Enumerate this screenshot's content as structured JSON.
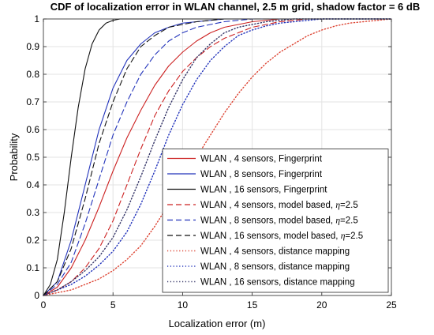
{
  "chart_data": {
    "type": "line",
    "title": "CDF of localization error in WLAN channel, 2.5 m grid, shadow factor =  6 dB",
    "xlabel": "Localization error (m)",
    "ylabel": "Probability",
    "xlim": [
      0,
      25
    ],
    "ylim": [
      0,
      1
    ],
    "xticks": [
      "0",
      "5",
      "10",
      "15",
      "20",
      "25"
    ],
    "yticks": [
      "0",
      "0.1",
      "0.2",
      "0.3",
      "0.4",
      "0.5",
      "0.6",
      "0.7",
      "0.8",
      "0.9",
      "1"
    ],
    "grid": true,
    "legend_position": "bottom-right",
    "series": [
      {
        "name": "WLAN , 4 sensors,    Fingerprint",
        "color": "#cc2222",
        "style": "solid",
        "x": [
          0,
          1,
          2,
          3,
          4,
          5,
          6,
          7,
          8,
          9,
          10,
          11,
          12,
          13,
          14,
          15,
          16,
          17,
          18,
          19,
          20,
          25
        ],
        "y": [
          0,
          0.03,
          0.1,
          0.2,
          0.32,
          0.45,
          0.57,
          0.67,
          0.76,
          0.83,
          0.88,
          0.92,
          0.95,
          0.97,
          0.98,
          0.99,
          0.995,
          1,
          1,
          1,
          1,
          1
        ]
      },
      {
        "name": "WLAN , 8 sensors,    Fingerprint",
        "color": "#2233bb",
        "style": "solid",
        "x": [
          0,
          1,
          2,
          3,
          4,
          5,
          6,
          7,
          8,
          9,
          10,
          11,
          12,
          13,
          14,
          15,
          16,
          17,
          18,
          25
        ],
        "y": [
          0,
          0.05,
          0.2,
          0.4,
          0.6,
          0.75,
          0.85,
          0.91,
          0.95,
          0.97,
          0.985,
          0.99,
          0.995,
          1,
          1,
          1,
          1,
          1,
          1,
          1
        ]
      },
      {
        "name": "WLAN , 16 sensors,    Fingerprint",
        "color": "#111111",
        "style": "solid",
        "x": [
          0,
          0.5,
          1,
          1.5,
          2,
          2.5,
          3,
          3.5,
          4,
          4.5,
          5,
          5.5,
          6,
          7,
          8,
          9,
          10,
          25
        ],
        "y": [
          0,
          0.04,
          0.13,
          0.3,
          0.5,
          0.68,
          0.82,
          0.91,
          0.96,
          0.985,
          0.995,
          1,
          1,
          1,
          1,
          1,
          1,
          1
        ]
      },
      {
        "name": "WLAN , 4 sensors,    model based, η=2.5",
        "color": "#cc2222",
        "style": "dashed",
        "x": [
          0,
          1,
          2,
          3,
          4,
          5,
          6,
          7,
          8,
          9,
          10,
          11,
          12,
          13,
          14,
          15,
          16,
          17,
          18,
          19,
          20,
          25
        ],
        "y": [
          0,
          0.02,
          0.05,
          0.1,
          0.17,
          0.27,
          0.4,
          0.53,
          0.65,
          0.74,
          0.81,
          0.86,
          0.9,
          0.93,
          0.95,
          0.97,
          0.98,
          0.99,
          0.995,
          1,
          1,
          1
        ]
      },
      {
        "name": "WLAN , 8 sensors,    model based, η=2.5",
        "color": "#2233bb",
        "style": "dashed",
        "x": [
          0,
          1,
          2,
          3,
          4,
          5,
          6,
          7,
          8,
          9,
          10,
          11,
          12,
          13,
          14,
          15,
          16,
          17,
          25
        ],
        "y": [
          0,
          0.04,
          0.12,
          0.26,
          0.42,
          0.58,
          0.7,
          0.8,
          0.87,
          0.92,
          0.95,
          0.97,
          0.98,
          0.99,
          0.995,
          1,
          1,
          1,
          1
        ]
      },
      {
        "name": "WLAN , 16 sensors,    model based, η=2.5",
        "color": "#111111",
        "style": "dashed",
        "x": [
          0,
          1,
          2,
          3,
          4,
          5,
          6,
          7,
          8,
          9,
          10,
          11,
          12,
          13,
          14,
          15,
          16,
          25
        ],
        "y": [
          0,
          0.05,
          0.17,
          0.35,
          0.55,
          0.7,
          0.82,
          0.9,
          0.94,
          0.97,
          0.98,
          0.99,
          0.995,
          1,
          1,
          1,
          1,
          1
        ]
      },
      {
        "name": "WLAN , 4 sensors,    distance mapping",
        "color": "#dd4433",
        "style": "dotted",
        "x": [
          0,
          1,
          2,
          3,
          4,
          5,
          6,
          7,
          8,
          9,
          10,
          11,
          12,
          13,
          14,
          15,
          16,
          17,
          18,
          19,
          20,
          21,
          22,
          23,
          24,
          25
        ],
        "y": [
          0,
          0.01,
          0.02,
          0.04,
          0.06,
          0.09,
          0.13,
          0.18,
          0.25,
          0.33,
          0.42,
          0.5,
          0.58,
          0.66,
          0.73,
          0.79,
          0.84,
          0.88,
          0.91,
          0.94,
          0.96,
          0.975,
          0.985,
          0.99,
          0.995,
          1
        ]
      },
      {
        "name": "WLAN , 8 sensors,    distance mapping",
        "color": "#2233bb",
        "style": "dotted",
        "x": [
          0,
          1,
          2,
          3,
          4,
          5,
          6,
          7,
          8,
          9,
          10,
          11,
          12,
          13,
          14,
          15,
          16,
          17,
          18,
          19,
          20,
          25
        ],
        "y": [
          0,
          0.02,
          0.04,
          0.07,
          0.11,
          0.16,
          0.23,
          0.33,
          0.45,
          0.58,
          0.69,
          0.78,
          0.85,
          0.9,
          0.94,
          0.96,
          0.975,
          0.985,
          0.99,
          0.995,
          1,
          1
        ]
      },
      {
        "name": "WLAN , 16 sensors,    distance mapping",
        "color": "#333366",
        "style": "dotted",
        "x": [
          0,
          1,
          2,
          3,
          4,
          5,
          6,
          7,
          8,
          9,
          10,
          11,
          12,
          13,
          14,
          15,
          16,
          17,
          18,
          19,
          25
        ],
        "y": [
          0,
          0.02,
          0.05,
          0.09,
          0.14,
          0.21,
          0.31,
          0.43,
          0.56,
          0.68,
          0.78,
          0.86,
          0.91,
          0.95,
          0.97,
          0.98,
          0.99,
          0.995,
          1,
          1,
          1
        ]
      }
    ]
  }
}
